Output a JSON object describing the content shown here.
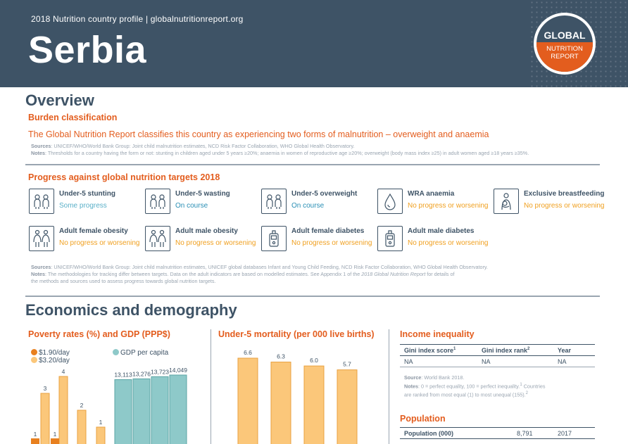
{
  "header": {
    "subtitle": "2018 Nutrition country profile  |  globalnutritionreport.org",
    "country": "Serbia",
    "logo_top": "GLOBAL",
    "logo_bottom_1": "NUTRITION",
    "logo_bottom_2": "REPORT"
  },
  "overview": {
    "title": "Overview",
    "burden_heading": "Burden classification",
    "burden_text": "The Global Nutrition Report classifies this country as experiencing two forms of malnutrition – overweight and anaemia",
    "burden_sources_label": "Sources",
    "burden_sources": ": UNICEF/WHO/World Bank Group: Joint child malnutrition estimates, NCD Risk Factor Collaboration, WHO Global Health Observatory.",
    "burden_notes_label": "Notes",
    "burden_notes": ": Thresholds for a country having the form or not: stunting in children aged under 5 years ≥20%; anaemia in women of reproductive age ≥20%; overweight (body mass index ≥25) in adult women aged ≥18 years ≥35%.",
    "progress_heading": "Progress against global nutrition targets 2018",
    "targets": [
      {
        "name": "Under-5 stunting",
        "status": "Some progress",
        "icon": "children-icon"
      },
      {
        "name": "Under-5 wasting",
        "status": "On course",
        "icon": "children-icon"
      },
      {
        "name": "Under-5 overweight",
        "status": "On course",
        "icon": "children-icon"
      },
      {
        "name": "WRA anaemia",
        "status": "No progress or worsening",
        "icon": "blood-drop-icon"
      },
      {
        "name": "Exclusive breastfeeding",
        "status": "No progress or worsening",
        "icon": "breastfeeding-icon"
      },
      {
        "name": "Adult female obesity",
        "status": "No progress or worsening",
        "icon": "adults-icon"
      },
      {
        "name": "Adult male obesity",
        "status": "No progress or worsening",
        "icon": "adults-icon"
      },
      {
        "name": "Adult female diabetes",
        "status": "No progress or worsening",
        "icon": "glucometer-icon"
      },
      {
        "name": "Adult male diabetes",
        "status": "No progress or worsening",
        "icon": "glucometer-icon"
      }
    ],
    "targets_sources_label": "Sources",
    "targets_sources": ": UNICEF/WHO/World Bank Group: Joint child malnutrition estimates, UNICEF global databases Infant and Young Child Feeding, NCD Risk Factor Collaboration, WHO Global Health Observatory.",
    "targets_notes_label": "Notes",
    "targets_notes_1": ": The methodologies for tracking differ between targets. Data on the adult indicators are based on modelled estimates. See Appendix 1 of the ",
    "targets_notes_italic": "2018 Global Nutrition Report",
    "targets_notes_2": " for details of",
    "targets_notes_3": "the methods and sources used to assess progress towards global nutrition targets."
  },
  "economics": {
    "title": "Economics and demography",
    "poverty_heading": "Poverty rates (%) and GDP (PPP$)",
    "mortality_heading": "Under-5 mortality (per 000 live births)",
    "inequality_heading": "Income inequality",
    "legend_190": "$1.90/day",
    "legend_320": "$3.20/day",
    "legend_gdp": "GDP per capita",
    "gini_headers": [
      "Gini index score",
      "Gini index rank",
      "Year"
    ],
    "gini_values": [
      "NA",
      "NA",
      "NA"
    ],
    "ineq_source_label": "Source",
    "ineq_source": ": World Bank 2018.",
    "ineq_notes_label": "Notes",
    "ineq_notes_1": ": 0 = perfect equality, 100 = perfect inequality.",
    "ineq_notes_2": " Countries",
    "ineq_notes_3": "are ranked from most equal (1) to most unequal (155).",
    "population_heading": "Population",
    "population_label": "Population (000)",
    "population_value": "8,791",
    "population_year": "2017"
  },
  "colors": {
    "navy": "#3e5366",
    "orange": "#e35d1e",
    "bar_orange": "#fbc77a",
    "bar_dark_orange": "#e8801f",
    "teal": "#8ec9c9"
  },
  "chart_data": [
    {
      "type": "bar",
      "title": "Poverty rates (%) and GDP (PPP$)",
      "series": [
        {
          "name": "$1.90/day",
          "values": [
            1,
            1
          ],
          "labels": [
            "1",
            "1"
          ]
        },
        {
          "name": "$3.20/day",
          "values": [
            3,
            4,
            2,
            1
          ],
          "labels": [
            "3",
            "4",
            "2",
            "1"
          ]
        },
        {
          "name": "GDP per capita",
          "values": [
            13113,
            13276,
            13723,
            14049
          ],
          "labels": [
            "13,113",
            "13,276",
            "13,723",
            "14,049"
          ]
        }
      ]
    },
    {
      "type": "bar",
      "title": "Under-5 mortality (per 000 live births)",
      "values": [
        6.6,
        6.3,
        6.0,
        5.7
      ],
      "labels": [
        "6.6",
        "6.3",
        "6.0",
        "5.7"
      ]
    }
  ]
}
